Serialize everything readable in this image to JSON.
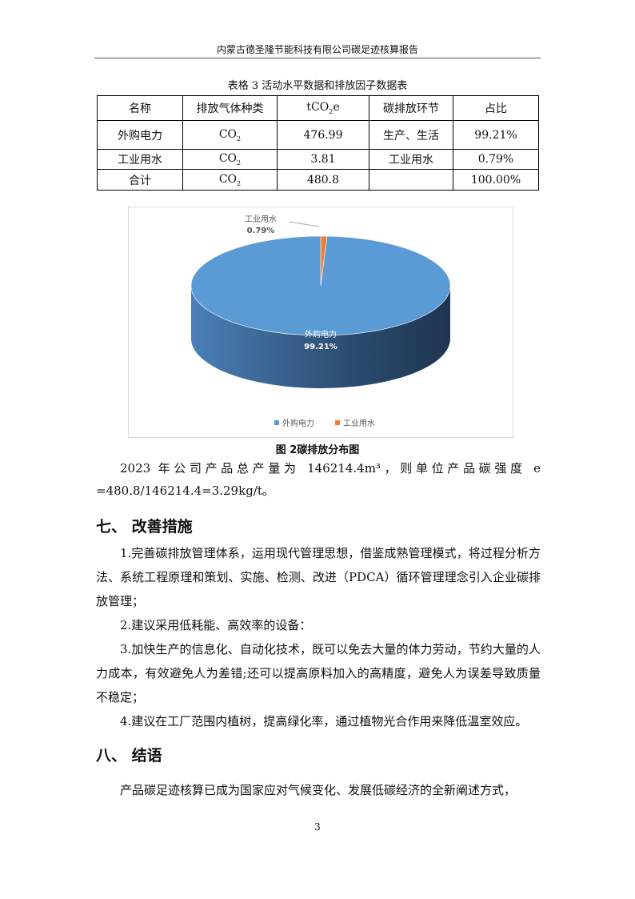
{
  "header": {
    "title": "内蒙古德圣隆节能科技有限公司碳足迹核算报告"
  },
  "table": {
    "caption": "表格 3 活动水平数据和排放因子数据表",
    "headers": [
      "名称",
      "排放气体种类",
      "tCO",
      "碳排放环节",
      "占比"
    ],
    "header_sub": "2",
    "header_suffix": "e",
    "rows": [
      [
        "外购电力",
        "CO",
        "476.99",
        "生产、生活",
        "99.21%"
      ],
      [
        "工业用水",
        "CO",
        "3.81",
        "工业用水",
        "0.79%"
      ],
      [
        "合计",
        "CO",
        "480.8",
        "",
        "100.00%"
      ]
    ],
    "sub": "2"
  },
  "chart_data": {
    "type": "pie",
    "style": "3d",
    "categories": [
      "外购电力",
      "工业用水"
    ],
    "values": [
      99.21,
      0.79
    ],
    "labels": [
      "99.21%",
      "0.79%"
    ],
    "colors": [
      "#5b9bd5",
      "#ed7d31"
    ],
    "legend": "bottom"
  },
  "figure": {
    "caption": "图 2碳排放分布图"
  },
  "body": {
    "p1": "2023 年公司产品总产量为 146214.4m³，则单位产品碳强度 e =480.8/146214.4=3.29kg/t。",
    "h7": "七、   改善措施",
    "m1": "1.完善碳排放管理体系，运用现代管理思想，借鉴成熟管理模式，将过程分析方法、系统工程原理和策划、实施、检测、改进（PDCA）循环管理理念引入企业碳排放管理；",
    "m2": "2.建议采用低耗能、高效率的设备：",
    "m3": "3.加快生产的信息化、自动化技术，既可以免去大量的体力劳动，节约大量的人力成本，有效避免人为差错;还可以提高原料加入的高精度，避免人为误差导致质量不稳定；",
    "m4": "4.建议在工厂范围内植树，提高绿化率，通过植物光合作用来降低温室效应。",
    "h8": "八、   结语",
    "c1": "产品碳足迹核算已成为国家应对气候变化、发展低碳经济的全新阐述方式，"
  },
  "page_number": "3"
}
